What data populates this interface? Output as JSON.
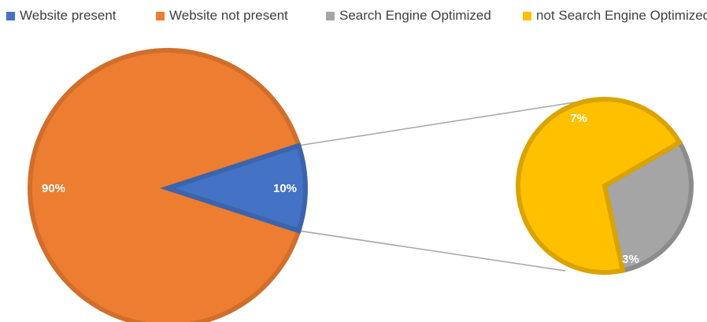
{
  "chart_data": {
    "type": "pie",
    "subtype": "pie-of-pie",
    "slices": [
      {
        "name": "Website present",
        "value": 10,
        "label": "10%",
        "color": "#4472c4",
        "chart": "main"
      },
      {
        "name": "Website not present",
        "value": 90,
        "label": "90%",
        "color": "#ed7d31",
        "chart": "main"
      },
      {
        "name": "Search Engine Optimized",
        "value": 3,
        "label": "3%",
        "color": "#a5a5a5",
        "chart": "secondary"
      },
      {
        "name": "not Search Engine Optimized",
        "value": 7,
        "label": "7%",
        "color": "#ffc000",
        "chart": "secondary"
      }
    ],
    "legend": [
      "Website present",
      "Website not present",
      "Search Engine Optimized",
      "not Search Engine Optimized"
    ],
    "legend_position": "top",
    "title": ""
  },
  "legend_colors": [
    "#4472c4",
    "#ed7d31",
    "#a5a5a5",
    "#ffc000"
  ],
  "legend_labels": [
    "Website present",
    "Website not present",
    "Search Engine Optimized",
    "not Search Engine Optimized"
  ]
}
